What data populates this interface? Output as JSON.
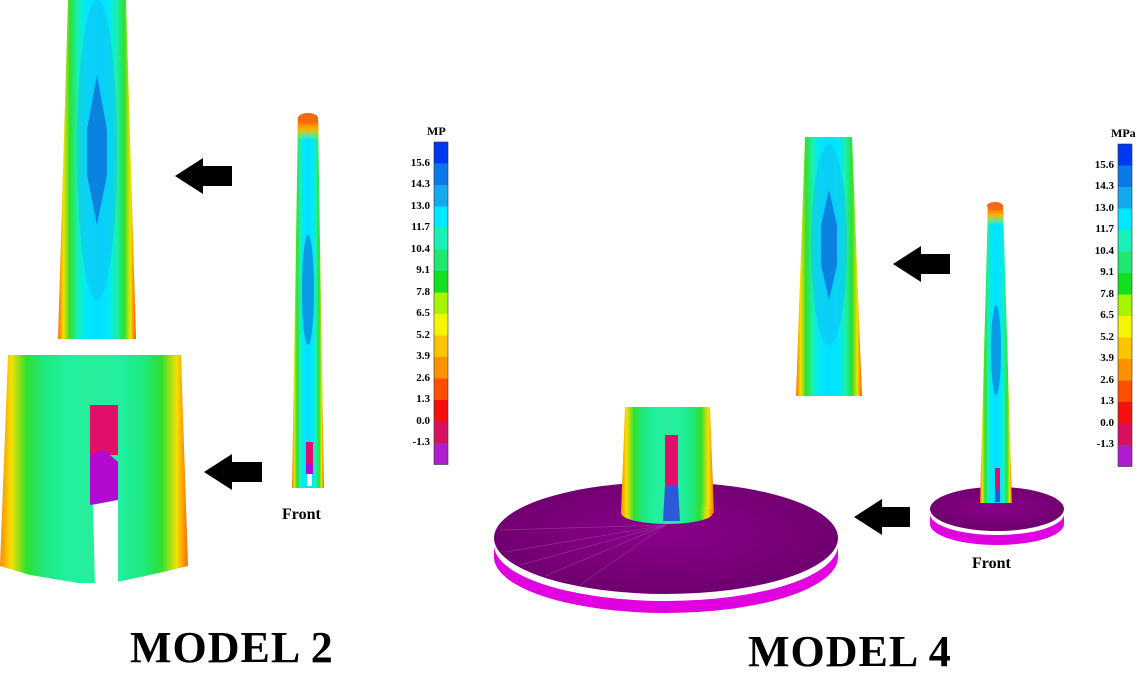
{
  "panels": [
    {
      "title": "MODEL 2",
      "view_label": "Front",
      "legend": {
        "unit": "MP",
        "ticks": [
          "15.6",
          "14.3",
          "13.0",
          "11.7",
          "10.4",
          "9.1",
          "7.8",
          "6.5",
          "5.2",
          "3.9",
          "2.6",
          "1.3",
          "0.0",
          "-1.3"
        ],
        "colors": [
          "#0037f0",
          "#0a7ae8",
          "#14a8ee",
          "#00e8ff",
          "#18f0b8",
          "#1ee870",
          "#10e020",
          "#a6f500",
          "#f5f500",
          "#fbc400",
          "#fc9200",
          "#fc5000",
          "#f51010",
          "#d81060",
          "#b01cd0"
        ]
      }
    },
    {
      "title": "MODEL 4",
      "view_label": "Front",
      "legend": {
        "unit": "MPa",
        "ticks": [
          "15.6",
          "14.3",
          "13.0",
          "11.7",
          "10.4",
          "9.1",
          "7.8",
          "6.5",
          "5.2",
          "3.9",
          "2.6",
          "1.3",
          "0.0",
          "-1.3"
        ],
        "colors": [
          "#0037f0",
          "#0a7ae8",
          "#14a8ee",
          "#00e8ff",
          "#18f0b8",
          "#1ee870",
          "#10e020",
          "#a6f500",
          "#f5f500",
          "#fbc400",
          "#fc9200",
          "#fc5000",
          "#f51010",
          "#d81060",
          "#b01cd0"
        ]
      }
    }
  ],
  "colors": {
    "foundation_top": "#7a007a",
    "foundation_rim": "#e000e0",
    "arrow": "#000000"
  }
}
